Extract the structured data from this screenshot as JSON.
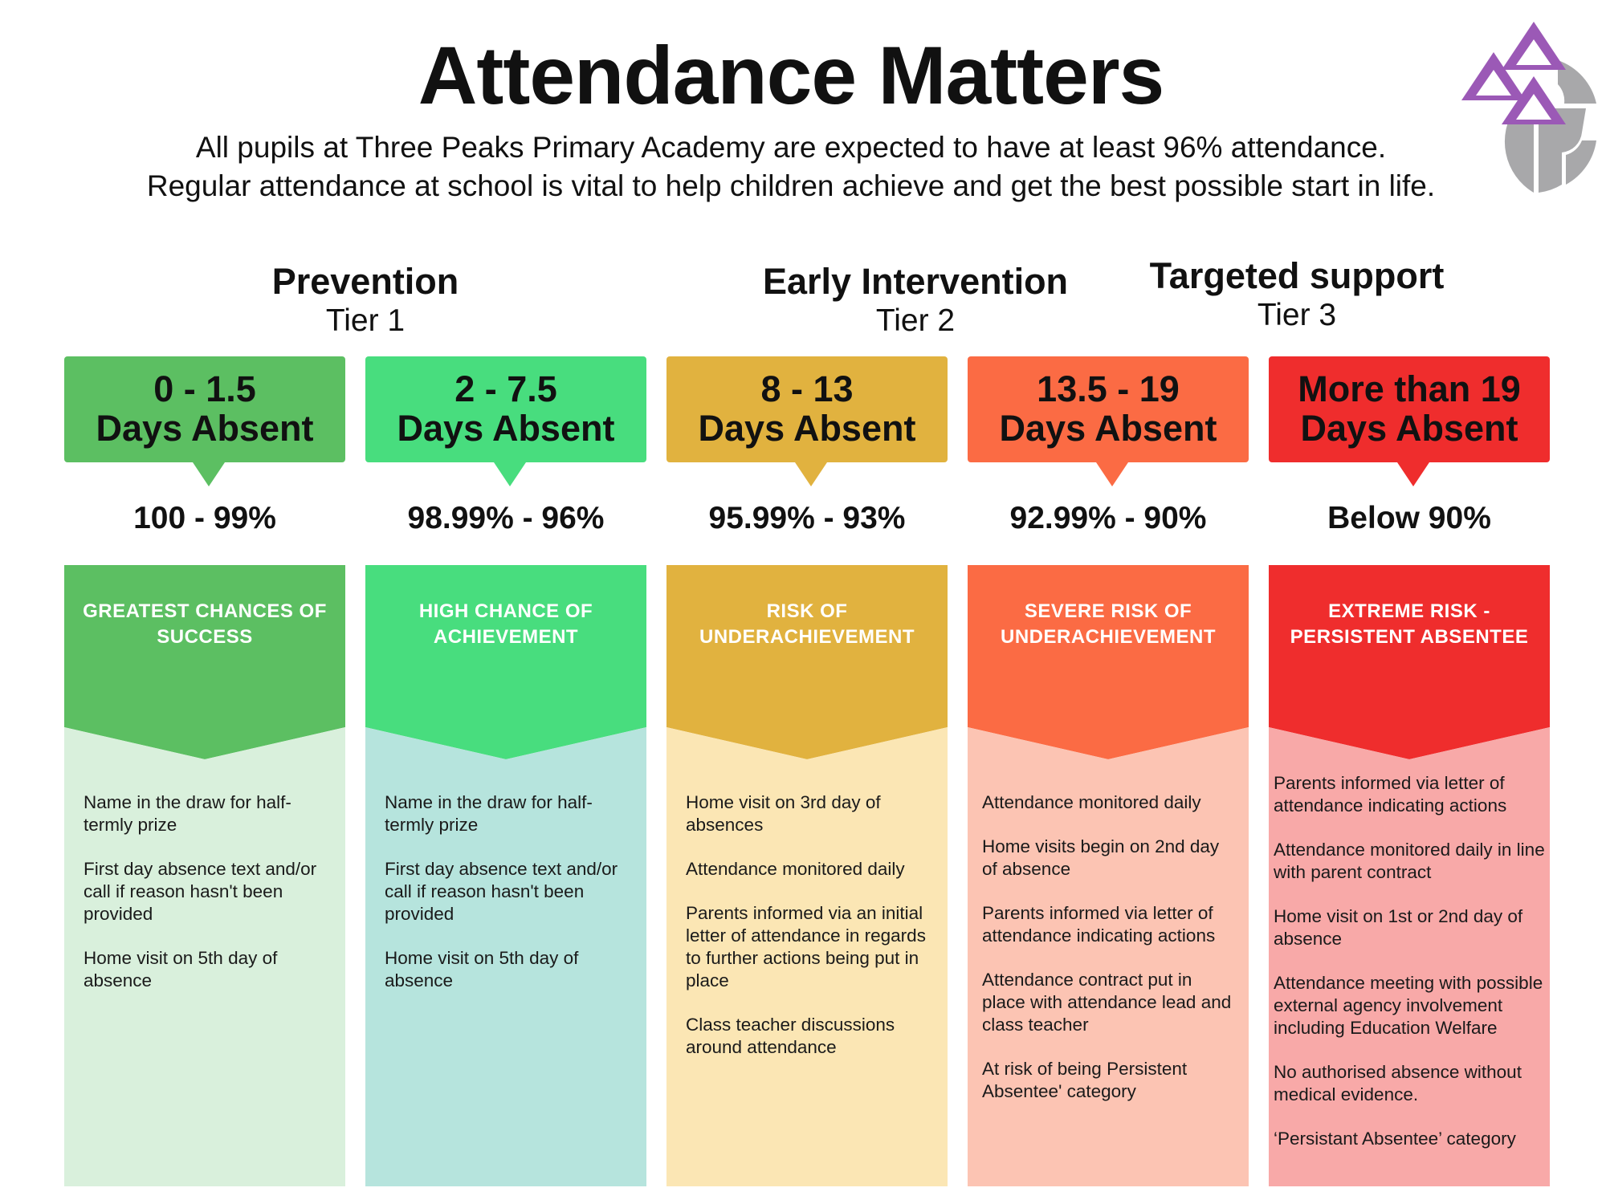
{
  "header": {
    "title": "Attendance Matters",
    "intro_line1": "All pupils at Three Peaks Primary Academy are expected to have at least 96% attendance.",
    "intro_line2": "Regular attendance at school is vital to help children achieve and get the best possible start in life."
  },
  "logo": {
    "icon": "three-peaks-logo",
    "colors": [
      "#9b59b6",
      "#a8a8aa"
    ]
  },
  "tiers": [
    {
      "name": "Prevention",
      "tier": "Tier 1"
    },
    {
      "name": "Early Intervention",
      "tier": "Tier 2"
    },
    {
      "name": "Targeted support",
      "tier": "Tier 3"
    }
  ],
  "columns": [
    {
      "range": "0 - 1.5",
      "unit": "Days Absent",
      "percent": "100 - 99%",
      "risk": "GREATEST CHANCES OF SUCCESS",
      "band_color": "#5cbf62",
      "body_color": "#d9f0dc",
      "actions": [
        "Name in the draw for half-termly prize",
        "First day absence text and/or call if reason hasn't been provided",
        "Home visit on 5th day of absence"
      ]
    },
    {
      "range": "2 - 7.5",
      "unit": "Days Absent",
      "percent": "98.99% - 96%",
      "risk": "HIGH CHANCE OF ACHIEVEMENT",
      "band_color": "#48dd7e",
      "body_color": "#b6e4dd",
      "actions": [
        "Name in the draw for half-termly prize",
        "First day absence text and/or call if reason hasn't been provided",
        "Home visit on 5th day of absence"
      ]
    },
    {
      "range": "8 - 13",
      "unit": "Days Absent",
      "percent": "95.99% - 93%",
      "risk": "RISK OF UNDERACHIEVEMENT",
      "band_color": "#e1b23f",
      "body_color": "#fbe6b4",
      "actions": [
        "Home visit on 3rd day of absences",
        "Attendance monitored daily",
        "Parents informed via an initial letter of attendance in regards to further actions being put in place",
        "Class teacher discussions around attendance"
      ]
    },
    {
      "range": "13.5 - 19",
      "unit": "Days Absent",
      "percent": "92.99% - 90%",
      "risk": "SEVERE RISK OF UNDERACHIEVEMENT",
      "band_color": "#fb6b44",
      "body_color": "#fcc4b3",
      "actions": [
        "Attendance monitored daily",
        "Home visits begin on 2nd day of absence",
        "Parents informed via letter of attendance indicating actions",
        "Attendance contract put in place with attendance lead and class teacher",
        "At risk of being Persistent Absentee' category"
      ]
    },
    {
      "range": "More than 19",
      "unit": "Days Absent",
      "percent": "Below 90%",
      "risk": "EXTREME RISK - PERSISTENT ABSENTEE",
      "band_color": "#ef2d2d",
      "body_color": "#f8a9a8",
      "actions": [
        "Parents informed via letter of attendance indicating actions",
        "Attendance monitored daily in line with parent contract",
        "Home visit on 1st or 2nd day of absence",
        "Attendance meeting with possible external agency involvement including Education Welfare",
        "No authorised absence without medical evidence.",
        "‘Persistant Absentee’ category"
      ]
    }
  ]
}
